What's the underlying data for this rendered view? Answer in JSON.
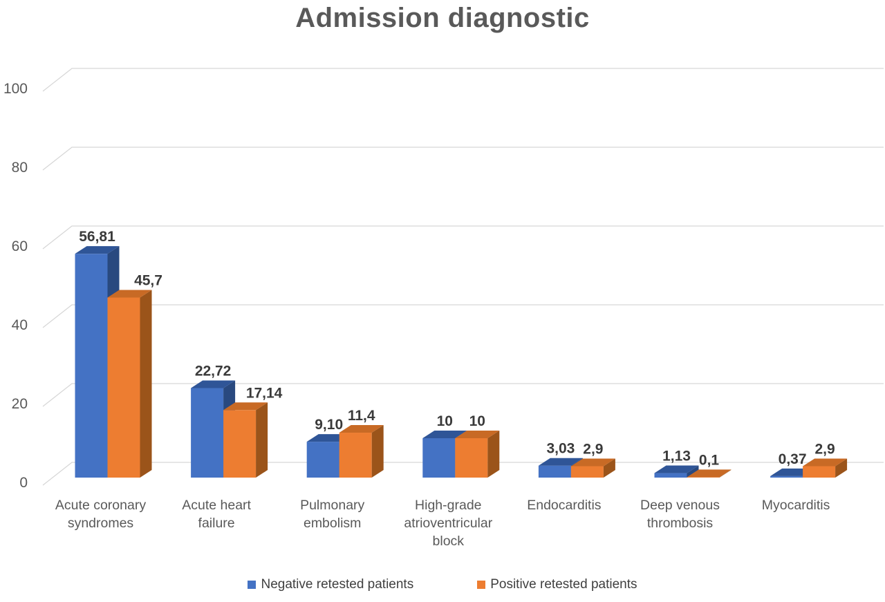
{
  "title": "Admission diagnostic",
  "chart_data": {
    "type": "bar",
    "style": "3d-clustered-column",
    "title": "Admission diagnostic",
    "categories": [
      "Acute coronary syndromes",
      "Acute heart failure",
      "Pulmonary embolism",
      "High-grade atrioventricular block",
      "Endocarditis",
      "Deep venous thrombosis",
      "Myocarditis"
    ],
    "category_label_lines": [
      [
        "Acute coronary",
        "syndromes"
      ],
      [
        "Acute heart",
        "failure"
      ],
      [
        "Pulmonary",
        "embolism"
      ],
      [
        "High-grade",
        "atrioventricular",
        "block"
      ],
      [
        "Endocarditis"
      ],
      [
        "Deep venous",
        "thrombosis"
      ],
      [
        "Myocarditis"
      ]
    ],
    "series": [
      {
        "name": "Negative retested patients",
        "values": [
          56.81,
          22.72,
          9.1,
          10,
          3.03,
          1.13,
          0.37
        ],
        "labels": [
          "56,81",
          "22,72",
          "9,10",
          "10",
          "3,03",
          "1,13",
          "0,37"
        ],
        "colors": {
          "front": "#4472C4",
          "top": "#2F5597",
          "side": "#29497F"
        }
      },
      {
        "name": "Positive retested patients",
        "values": [
          45.7,
          17.14,
          11.4,
          10,
          2.9,
          0.1,
          2.9
        ],
        "labels": [
          "45,7",
          "17,14",
          "11,4",
          "10",
          "2,9",
          "0,1",
          "2,9"
        ],
        "colors": {
          "front": "#ED7D31",
          "top": "#C86A25",
          "side": "#9B541A"
        }
      }
    ],
    "ylim": [
      0,
      100
    ],
    "yticks": [
      0,
      20,
      40,
      60,
      80,
      100
    ],
    "ytick_labels": [
      "0",
      "20",
      "40",
      "60",
      "80",
      "100"
    ],
    "grid": "horizontal-backwall",
    "legend_position": "bottom",
    "label_dx_series2": [
      27,
      27,
      0,
      0,
      0,
      0,
      0
    ],
    "colors": {
      "grid": "#D6D6D6",
      "axis_text": "#595959",
      "title_text": "#595959",
      "data_label": "#3A3A3A",
      "legend_text": "#3F3F3F",
      "background": "#FFFFFF"
    }
  },
  "legend": {
    "items": [
      {
        "label": "Negative retested patients",
        "color": "#4472C4"
      },
      {
        "label": "Positive retested patients",
        "color": "#ED7D31"
      }
    ]
  }
}
